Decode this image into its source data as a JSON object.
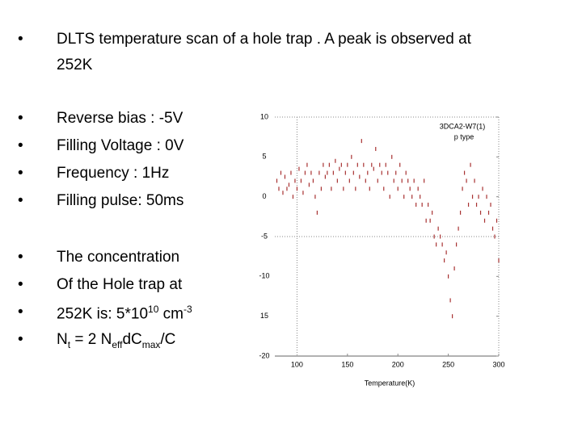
{
  "slide": {
    "intro": {
      "bullet": "•",
      "text": "DLTS temperature scan of a hole trap . A peak is observed at",
      "text2": "252K"
    },
    "conditions": [
      "Reverse bias : -5V",
      "Filling Voltage : 0V",
      "Frequency : 1Hz",
      "Filling pulse: 50ms"
    ],
    "result": [
      [
        "The concentration"
      ],
      [
        "Of the Hole trap at"
      ],
      [
        "252K is: 5*10",
        {
          "sup": "10"
        },
        " cm",
        {
          "sup": "-3"
        }
      ],
      [
        "N",
        {
          "sub": "t"
        },
        " = 2 N",
        {
          "sub": "eff"
        },
        "dC",
        {
          "sub": "max"
        },
        "/C"
      ]
    ]
  },
  "chart_data": {
    "type": "scatter",
    "x_label": "Temperature(K)",
    "annotations": [
      "3DCA2-W7(1)",
      "p type"
    ],
    "color": "#a83232",
    "xlim": [
      78,
      300
    ],
    "ylim": [
      -20,
      10
    ],
    "xticks": [
      100,
      150,
      200,
      250,
      300
    ],
    "yticks": [
      10,
      5,
      0,
      -5,
      -10,
      {
        "value": -15,
        "label": "15"
      },
      -20
    ],
    "x": [
      80,
      82,
      84,
      86,
      88,
      90,
      92,
      94,
      96,
      98,
      100,
      102,
      104,
      106,
      108,
      110,
      112,
      114,
      116,
      118,
      120,
      122,
      124,
      126,
      128,
      130,
      132,
      134,
      136,
      138,
      140,
      142,
      144,
      146,
      148,
      150,
      152,
      154,
      156,
      158,
      160,
      162,
      164,
      166,
      168,
      170,
      172,
      174,
      176,
      178,
      180,
      182,
      184,
      186,
      188,
      190,
      192,
      194,
      196,
      198,
      200,
      202,
      204,
      206,
      208,
      210,
      212,
      214,
      216,
      218,
      220,
      222,
      224,
      226,
      228,
      230,
      232,
      234,
      236,
      238,
      240,
      242,
      244,
      246,
      248,
      250,
      252,
      254,
      256,
      258,
      260,
      262,
      264,
      266,
      268,
      270,
      272,
      274,
      276,
      278,
      280,
      282,
      284,
      286,
      288,
      290,
      292,
      294,
      296,
      298,
      300
    ],
    "values": [
      2,
      1,
      3,
      0.5,
      2.5,
      1,
      1.5,
      3,
      0,
      2,
      1,
      3.5,
      2,
      0.5,
      3,
      4,
      1.5,
      3,
      2,
      0,
      -2,
      3,
      1,
      4,
      2.5,
      3,
      4,
      1,
      3,
      4.5,
      2,
      3.5,
      4,
      1,
      3,
      4,
      2,
      5,
      3,
      1,
      4,
      2.5,
      7,
      4,
      2,
      3,
      1,
      4,
      3.5,
      6,
      2,
      4,
      3,
      1,
      4,
      3,
      0,
      5,
      2,
      3,
      1,
      4,
      2,
      0,
      3,
      2,
      1,
      0,
      2,
      -1,
      1,
      0,
      -1,
      2,
      -3,
      -1,
      -3,
      -2,
      -5,
      -6,
      -4,
      -5,
      -6,
      -8,
      -7,
      -10,
      -13,
      -15,
      -9,
      -6,
      -4,
      -2,
      1,
      3,
      2,
      -1,
      4,
      0,
      2,
      -1,
      0,
      -2,
      1,
      -3,
      0,
      -2,
      -1,
      -4,
      -5,
      -3,
      -8
    ]
  }
}
